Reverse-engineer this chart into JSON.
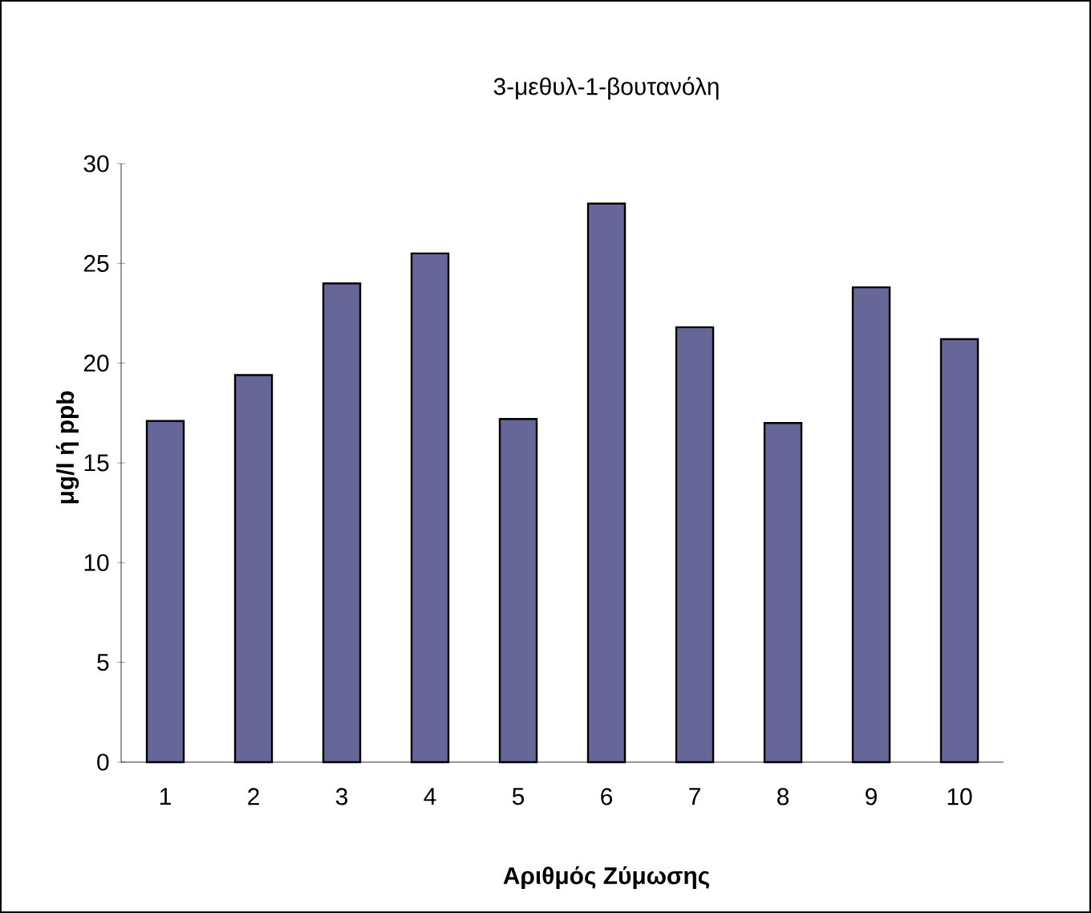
{
  "chart_data": {
    "type": "bar",
    "title": "3-μεθυλ-1-βουτανόλη",
    "xlabel": "Αριθμός Ζύμωσης",
    "ylabel": "μg/l ή ppb",
    "categories": [
      "1",
      "2",
      "3",
      "4",
      "5",
      "6",
      "7",
      "8",
      "9",
      "10"
    ],
    "values": [
      17.1,
      19.4,
      24.0,
      25.5,
      17.2,
      28.0,
      21.8,
      17.0,
      23.8,
      21.2
    ],
    "color": "#666699",
    "ylim": [
      0,
      30
    ],
    "yticks": [
      0,
      5,
      10,
      15,
      20,
      25,
      30
    ]
  }
}
